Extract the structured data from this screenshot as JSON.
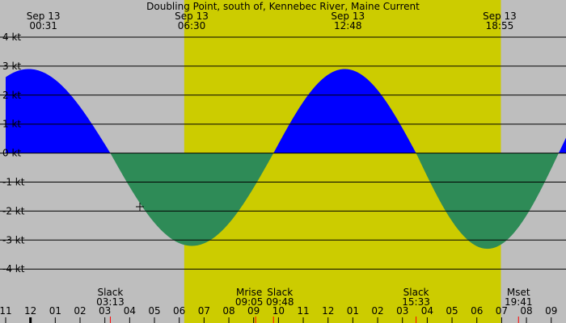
{
  "title": "Doubling Point, south of, Kennebec River, Maine Current",
  "colors": {
    "background": "#bebebe",
    "daylight": "#cccc00",
    "flood": "#0000ff",
    "ebb": "#2e8b57",
    "gridline": "#000000",
    "event_marker": "#ff0000"
  },
  "top_labels": [
    {
      "date": "Sep 13",
      "time": "00:31"
    },
    {
      "date": "Sep 13",
      "time": "06:30"
    },
    {
      "date": "Sep 13",
      "time": "12:48"
    },
    {
      "date": "Sep 13",
      "time": "18:55"
    }
  ],
  "events": [
    {
      "label": "Slack",
      "time": "03:13"
    },
    {
      "label": "Mrise",
      "time": "09:05"
    },
    {
      "label": "Slack",
      "time": "09:48"
    },
    {
      "label": "Slack",
      "time": "15:33"
    },
    {
      "label": "Mset",
      "time": "19:41"
    }
  ],
  "chart_data": {
    "type": "area",
    "title": "Doubling Point, south of, Kennebec River, Maine Current",
    "ylabel": "kt",
    "ylim": [
      -4.6,
      4
    ],
    "y_ticks": [
      4,
      3,
      2,
      1,
      0,
      -1,
      -2,
      -3,
      -4
    ],
    "y_tick_labels": [
      "4 kt",
      "3 kt",
      "2 kt",
      "1 kt",
      "0 kt",
      "-1 kt",
      "-2 kt",
      "-3 kt",
      "-4 kt"
    ],
    "xlim_hours": [
      -1.0,
      21.75
    ],
    "x_ticks": [
      -1,
      0,
      1,
      2,
      3,
      4,
      5,
      6,
      7,
      8,
      9,
      10,
      11,
      12,
      13,
      14,
      15,
      16,
      17,
      18,
      19,
      20,
      21
    ],
    "x_tick_labels": [
      "11",
      "12",
      "01",
      "02",
      "03",
      "04",
      "05",
      "06",
      "07",
      "08",
      "09",
      "10",
      "11",
      "12",
      "01",
      "02",
      "03",
      "04",
      "05",
      "06",
      "07",
      "08",
      "09"
    ],
    "daylight_hours": [
      6.2,
      18.97
    ],
    "series": [
      {
        "name": "Current",
        "points": [
          {
            "time": "00:31",
            "hour": 0.52,
            "kt": 2.9,
            "type": "max flood"
          },
          {
            "time": "03:13",
            "hour": 3.22,
            "kt": 0.0,
            "type": "slack"
          },
          {
            "time": "06:30",
            "hour": 6.5,
            "kt": -3.2,
            "type": "max ebb"
          },
          {
            "time": "09:48",
            "hour": 9.8,
            "kt": 0.0,
            "type": "slack"
          },
          {
            "time": "12:48",
            "hour": 12.8,
            "kt": 2.9,
            "type": "max flood"
          },
          {
            "time": "15:33",
            "hour": 15.55,
            "kt": 0.0,
            "type": "slack"
          },
          {
            "time": "18:55",
            "hour": 18.92,
            "kt": -3.3,
            "type": "max ebb"
          }
        ]
      }
    ],
    "event_hours": [
      3.22,
      9.08,
      9.8,
      15.55,
      19.68
    ],
    "grid": true
  }
}
